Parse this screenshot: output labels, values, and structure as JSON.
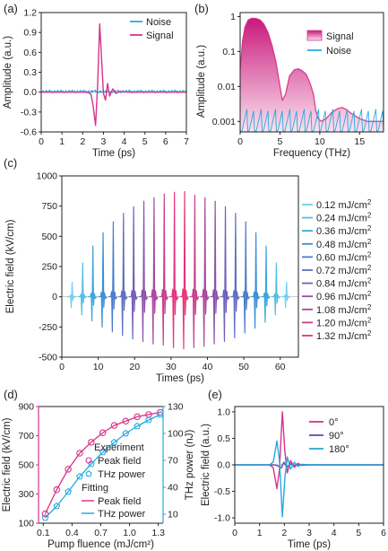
{
  "colors": {
    "signal": "#d6348a",
    "noise": "#2aa9df",
    "fill_top": "#c9187b",
    "fill_bottom": "#fbe3ef",
    "experiment": "#e8304e",
    "fitting": "#1f74c9",
    "pink_axis": "#d6348a",
    "cyan_axis": "#2aa9df",
    "purple": "#6a47b0",
    "axis": "#222222"
  },
  "panels": {
    "a": {
      "label": "(a)"
    },
    "b": {
      "label": "(b)"
    },
    "c": {
      "label": "(c)"
    },
    "d": {
      "label": "(d)"
    },
    "e": {
      "label": "(e)"
    }
  },
  "chart_data": [
    {
      "panel": "a",
      "type": "line",
      "xlabel": "Time (ps)",
      "ylabel": "Amplitude (a.u.)",
      "xlim": [
        0,
        7
      ],
      "ylim": [
        -0.6,
        1.2
      ],
      "xticks": [
        0,
        1,
        2,
        3,
        4,
        5,
        6,
        7
      ],
      "yticks": [
        -0.6,
        -0.3,
        0.0,
        0.3,
        0.6,
        0.9,
        1.2
      ],
      "ytick_labels": [
        "-0.6",
        "-0.3",
        "0.0",
        "0.3",
        "0.6",
        "0.9",
        "1.2"
      ],
      "legend": [
        "Noise",
        "Signal"
      ],
      "legend_position": "top-right",
      "series": [
        {
          "name": "Signal",
          "x": [
            0,
            2.2,
            2.4,
            2.5,
            2.62,
            2.72,
            2.82,
            2.92,
            3.0,
            3.1,
            3.2,
            3.3,
            3.45,
            3.6,
            3.8,
            4.2,
            7
          ],
          "y": [
            0,
            0,
            -0.03,
            -0.2,
            -0.5,
            0.1,
            1.03,
            0.45,
            -0.02,
            -0.12,
            0.13,
            -0.06,
            0.05,
            -0.02,
            0.01,
            0,
            0
          ]
        },
        {
          "name": "Noise",
          "x": [
            0,
            7
          ],
          "y": [
            0.01,
            0.01
          ]
        }
      ]
    },
    {
      "panel": "b",
      "type": "area",
      "xlabel": "Frequency (THz)",
      "ylabel": "Amplitude (a.u.)",
      "xlim": [
        0,
        18
      ],
      "ylim": [
        0.0005,
        1.3
      ],
      "yscale": "log",
      "xticks": [
        0,
        5,
        10,
        15
      ],
      "yticks": [
        0.001,
        0.01,
        0.1,
        1
      ],
      "ytick_labels": [
        "0.001",
        "0.01",
        "0.1",
        "1"
      ],
      "legend": [
        "Signal",
        "Noise"
      ],
      "legend_position": "top-right",
      "series": [
        {
          "name": "Signal",
          "x": [
            0,
            0.3,
            0.6,
            1.0,
            1.5,
            2.0,
            2.5,
            3.0,
            3.5,
            4.0,
            4.5,
            5.0,
            5.3,
            5.7,
            6.2,
            6.8,
            7.3,
            7.8,
            8.3,
            8.8,
            9.2,
            9.5,
            9.8,
            10.2,
            10.8,
            11.5,
            12.2,
            12.8,
            13.3,
            13.8,
            14.3,
            15.0,
            16.0,
            17.0,
            18.0
          ],
          "y": [
            0.03,
            0.2,
            0.5,
            0.8,
            0.9,
            0.88,
            0.8,
            0.6,
            0.35,
            0.15,
            0.05,
            0.01,
            0.004,
            0.006,
            0.02,
            0.03,
            0.032,
            0.028,
            0.022,
            0.012,
            0.006,
            0.002,
            0.0012,
            0.001,
            0.0012,
            0.0018,
            0.0023,
            0.0025,
            0.0022,
            0.0018,
            0.0015,
            0.0012,
            0.001,
            0.001,
            0.001
          ]
        },
        {
          "name": "Noise",
          "x_range": [
            0,
            18
          ],
          "level": 0.001,
          "note_none": true
        }
      ]
    },
    {
      "panel": "c",
      "type": "line",
      "xlabel": "Times (ps)",
      "ylabel": "Electric field (kV/cm)",
      "xlim": [
        0,
        65
      ],
      "ylim": [
        -500,
        1000
      ],
      "xticks": [
        0,
        10,
        20,
        30,
        40,
        50,
        60
      ],
      "yticks": [
        -500,
        -250,
        0,
        250,
        500,
        750,
        1000
      ],
      "legend_position": "right",
      "series": [
        {
          "name": "0.12 mJ/cm2",
          "label": "0.12 mJ/cm",
          "sup": "2",
          "color": "#6fd0ef"
        },
        {
          "name": "0.24 mJ/cm2",
          "label": "0.24 mJ/cm",
          "sup": "2",
          "color": "#4fbfe6"
        },
        {
          "name": "0.36 mJ/cm2",
          "label": "0.36 mJ/cm",
          "sup": "2",
          "color": "#37a6dc"
        },
        {
          "name": "0.48 mJ/cm2",
          "label": "0.48 mJ/cm",
          "sup": "2",
          "color": "#3b8fd4"
        },
        {
          "name": "0.60 mJ/cm2",
          "label": "0.60 mJ/cm",
          "sup": "2",
          "color": "#4a7ccc"
        },
        {
          "name": "0.72 mJ/cm2",
          "label": "0.72 mJ/cm",
          "sup": "2",
          "color": "#5c6dc3"
        },
        {
          "name": "0.84 mJ/cm2",
          "label": "0.84 mJ/cm",
          "sup": "2",
          "color": "#7060b8"
        },
        {
          "name": "0.96 mJ/cm2",
          "label": "0.96 mJ/cm",
          "sup": "2",
          "color": "#8c52ab"
        },
        {
          "name": "1.08 mJ/cm2",
          "label": "1.08 mJ/cm",
          "sup": "2",
          "color": "#a8479d"
        },
        {
          "name": "1.20 mJ/cm2",
          "label": "1.20 mJ/cm",
          "sup": "2",
          "color": "#c83d8c"
        },
        {
          "name": "1.32 mJ/cm2",
          "label": "1.32 mJ/cm",
          "sup": "2",
          "color": "#e6347c"
        }
      ],
      "pulses": [
        {
          "t": 2.7,
          "peak": 120,
          "trough": -90
        },
        {
          "t": 5.6,
          "peak": 280,
          "trough": -150
        },
        {
          "t": 8.4,
          "peak": 420,
          "trough": -200
        },
        {
          "t": 11.2,
          "peak": 530,
          "trough": -250
        },
        {
          "t": 14.0,
          "peak": 620,
          "trough": -290
        },
        {
          "t": 16.8,
          "peak": 690,
          "trough": -320
        },
        {
          "t": 19.6,
          "peak": 745,
          "trough": -350
        },
        {
          "t": 22.4,
          "peak": 790,
          "trough": -370
        },
        {
          "t": 25.2,
          "peak": 820,
          "trough": -390
        },
        {
          "t": 28.0,
          "peak": 850,
          "trough": -400
        },
        {
          "t": 30.8,
          "peak": 865,
          "trough": -420
        },
        {
          "t": 33.6,
          "peak": 870,
          "trough": -430
        },
        {
          "t": 36.4,
          "peak": 840,
          "trough": -420
        },
        {
          "t": 39.2,
          "peak": 820,
          "trough": -410
        },
        {
          "t": 42.0,
          "peak": 790,
          "trough": -390
        },
        {
          "t": 44.8,
          "peak": 745,
          "trough": -370
        },
        {
          "t": 47.6,
          "peak": 690,
          "trough": -340
        },
        {
          "t": 50.4,
          "peak": 620,
          "trough": -300
        },
        {
          "t": 53.2,
          "peak": 530,
          "trough": -260
        },
        {
          "t": 56.0,
          "peak": 420,
          "trough": -210
        },
        {
          "t": 58.8,
          "peak": 280,
          "trough": -150
        },
        {
          "t": 61.6,
          "peak": 120,
          "trough": -90
        }
      ]
    },
    {
      "panel": "d",
      "type": "scatter",
      "xlabel": "Pump fluence (mJ/cm²)",
      "ylabel_left": "Electric field (kV/cm)",
      "ylabel_right": "THz power (nJ)",
      "xlim": [
        0.05,
        1.35
      ],
      "ylim_left": [
        100,
        900
      ],
      "ylim_right": [
        0,
        130
      ],
      "xticks": [
        0.1,
        0.4,
        0.7,
        1.0,
        1.3
      ],
      "xtick_labels": [
        "0.1",
        "0.4",
        "0.7",
        "1.0",
        "1.3"
      ],
      "yticks_left": [
        100,
        300,
        500,
        700,
        900
      ],
      "yticks_right": [
        10,
        40,
        70,
        100,
        130
      ],
      "legend": {
        "experiment_title": "Experiment",
        "peak_field": "Peak field",
        "thz_power": "THz power",
        "fitting_title": "Fitting",
        "fit_peak": "Peak field",
        "fit_power": "THz power"
      },
      "legend_position": "bottom-right",
      "series": [
        {
          "name": "Peak field",
          "x": [
            0.12,
            0.24,
            0.36,
            0.48,
            0.6,
            0.72,
            0.84,
            0.96,
            1.08,
            1.2,
            1.32
          ],
          "y": [
            165,
            330,
            470,
            580,
            655,
            720,
            770,
            800,
            830,
            845,
            860
          ]
        },
        {
          "name": "THz power",
          "x": [
            0.12,
            0.24,
            0.36,
            0.48,
            0.6,
            0.72,
            0.84,
            0.96,
            1.08,
            1.2,
            1.32
          ],
          "y": [
            6,
            19,
            35,
            52,
            66,
            79,
            90,
            100,
            108,
            115,
            121
          ]
        }
      ]
    },
    {
      "panel": "e",
      "type": "line",
      "xlabel": "Time (ps)",
      "ylabel": "Electric field (a.u.)",
      "xlim": [
        0,
        6
      ],
      "ylim": [
        -1.1,
        1.1
      ],
      "xticks": [
        0,
        1,
        2,
        3,
        4,
        5,
        6
      ],
      "yticks": [
        -1.0,
        -0.5,
        0.0,
        0.5,
        1.0
      ],
      "ytick_labels": [
        "-1.0",
        "-0.5",
        "0.0",
        "0.5",
        "1.0"
      ],
      "legend": [
        "0°",
        "90°",
        "180°"
      ],
      "legend_position": "top-right",
      "series": [
        {
          "name": "0°",
          "x": [
            0,
            1.4,
            1.55,
            1.7,
            1.8,
            1.92,
            2.02,
            2.12,
            2.25,
            2.4,
            2.55,
            2.7,
            3.0,
            6
          ],
          "y": [
            0,
            0,
            -0.05,
            -0.45,
            -0.1,
            1.0,
            0.25,
            -0.15,
            0.08,
            -0.05,
            0.03,
            -0.01,
            0,
            0
          ]
        },
        {
          "name": "90°",
          "x": [
            0,
            1.6,
            1.75,
            1.88,
            1.98,
            2.1,
            2.25,
            2.4,
            2.6,
            6
          ],
          "y": [
            0,
            0,
            -0.02,
            -0.06,
            0.05,
            -0.04,
            0.02,
            -0.01,
            0,
            0
          ]
        },
        {
          "name": "180°",
          "x": [
            0,
            1.4,
            1.55,
            1.7,
            1.8,
            1.92,
            2.02,
            2.12,
            2.25,
            2.4,
            2.55,
            2.7,
            3.0,
            6
          ],
          "y": [
            0,
            0,
            0.05,
            0.45,
            0.1,
            -0.98,
            -0.25,
            0.15,
            -0.08,
            0.05,
            -0.03,
            0.01,
            0,
            0
          ]
        }
      ]
    }
  ]
}
